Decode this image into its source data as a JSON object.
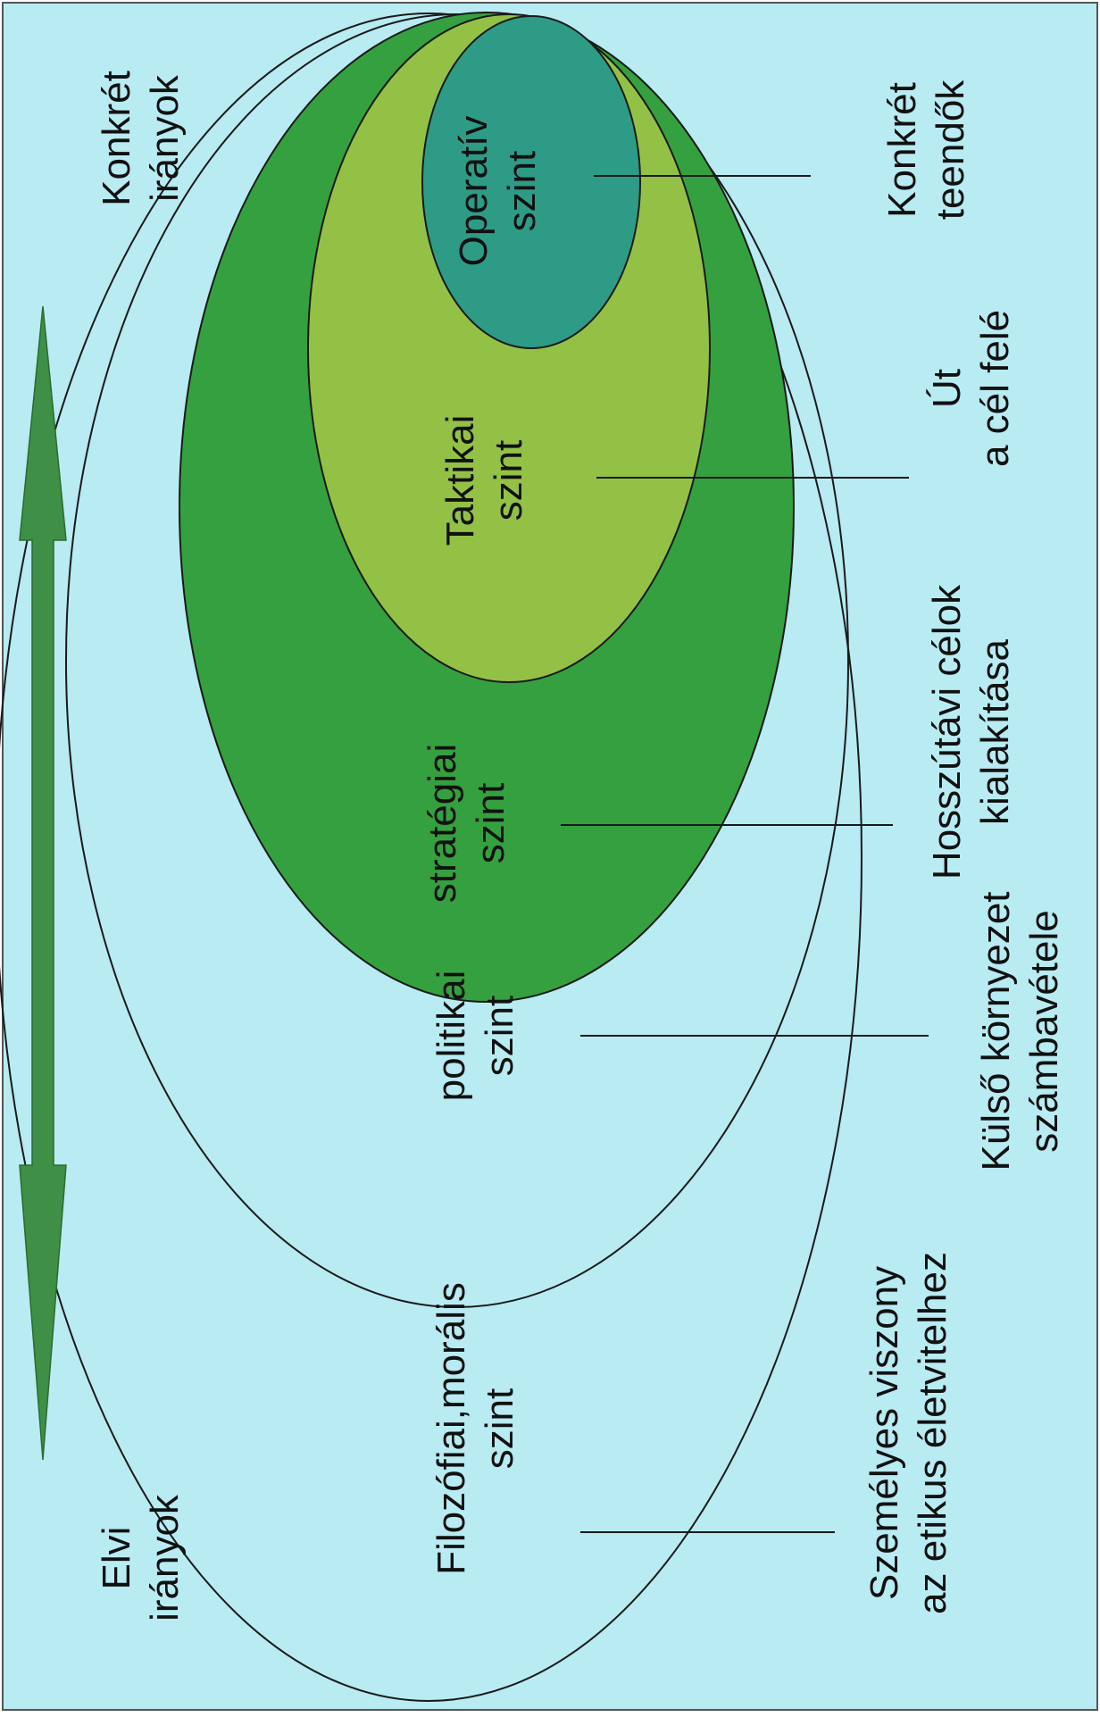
{
  "colors": {
    "background": "#b8ebf2",
    "strategic": "#35a03f",
    "tactical": "#93c146",
    "operative": "#2e9b86",
    "outline": "#1a1a1a",
    "arrow": "#3f8f47"
  },
  "levels": {
    "philosophical": {
      "line1": "Filozófiai,morális",
      "line2": "szint"
    },
    "political": {
      "line1": "politikai",
      "line2": "szint"
    },
    "strategic": {
      "line1": "stratégiai",
      "line2": "szint"
    },
    "tactical": {
      "line1": "Taktikai",
      "line2": "szint"
    },
    "operative": {
      "line1": "Operatív",
      "line2": "szint"
    }
  },
  "descriptions": {
    "philosophical": {
      "line1": "Személyes viszony",
      "line2": "az etikus életvitelhez"
    },
    "political": {
      "line1": "Külső környezet",
      "line2": "számbavétele"
    },
    "strategic": {
      "line1": "Hosszútávi célok",
      "line2": "kialakítása"
    },
    "tactical": {
      "line1": "Út",
      "line2": "a cél felé"
    },
    "operative": {
      "line1": "Konkrét",
      "line2": "teendők"
    }
  },
  "axis": {
    "start": {
      "line1": "Elvi",
      "line2": "irányok"
    },
    "end": {
      "line1": "Konkrét",
      "line2": "irányok"
    }
  }
}
